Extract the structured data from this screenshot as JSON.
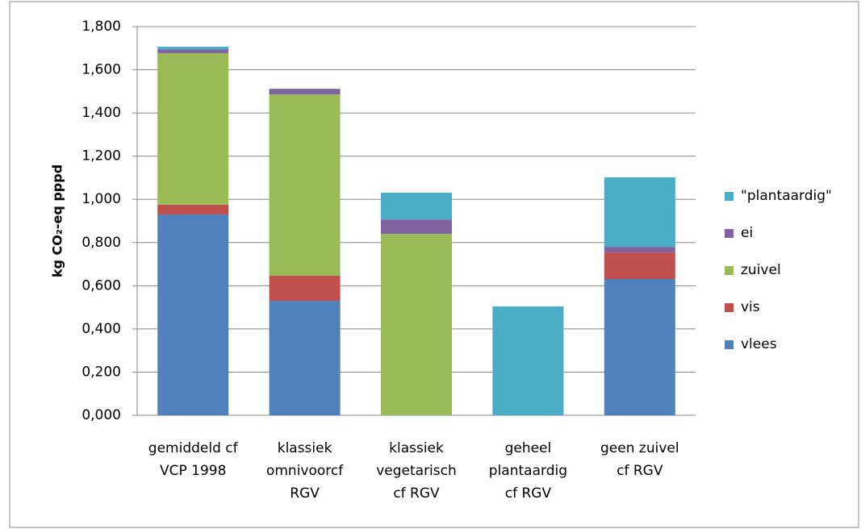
{
  "chart_data": {
    "type": "stacked_bar",
    "y_label": "kg CO₂-eq pppd",
    "categories": [
      [
        "gemiddeld cf",
        "VCP 1998"
      ],
      [
        "klassiek",
        "omnivoorcf",
        "RGV"
      ],
      [
        "klassiek",
        "vegetarisch",
        "cf RGV"
      ],
      [
        "geheel",
        "plantaardig",
        "cf RGV"
      ],
      [
        "geen zuivel",
        "cf RGV"
      ]
    ],
    "series": [
      {
        "name": "vlees",
        "color": "#4f81bd",
        "values": [
          0.93,
          0.53,
          0,
          0,
          0.631
        ]
      },
      {
        "name": "vis",
        "color": "#c0504d",
        "values": [
          0.045,
          0.116,
          0,
          0,
          0.123
        ]
      },
      {
        "name": "zuivel",
        "color": "#9bbb59",
        "values": [
          0.702,
          0.84,
          0.84,
          0,
          0
        ]
      },
      {
        "name": "ei",
        "color": "#8064a2",
        "values": [
          0.018,
          0.026,
          0.067,
          0,
          0.026
        ]
      },
      {
        "name": "\"plantaardig\"",
        "color": "#4bacc6",
        "values": [
          0.012,
          0,
          0.124,
          0.504,
          0.322
        ]
      }
    ],
    "ylim": [
      0,
      1.8
    ],
    "yticks": [
      {
        "value": 0,
        "label": "0,000"
      },
      {
        "value": 0.2,
        "label": "0,200"
      },
      {
        "value": 0.4,
        "label": "0,400"
      },
      {
        "value": 0.6,
        "label": "0,600"
      },
      {
        "value": 0.8,
        "label": "0,800"
      },
      {
        "value": 1.0,
        "label": "1,000"
      },
      {
        "value": 1.2,
        "label": "1,200"
      },
      {
        "value": 1.4,
        "label": "1,400"
      },
      {
        "value": 1.6,
        "label": "1,600"
      },
      {
        "value": 1.8,
        "label": "1,800"
      }
    ],
    "grid": true,
    "legend": "right"
  }
}
